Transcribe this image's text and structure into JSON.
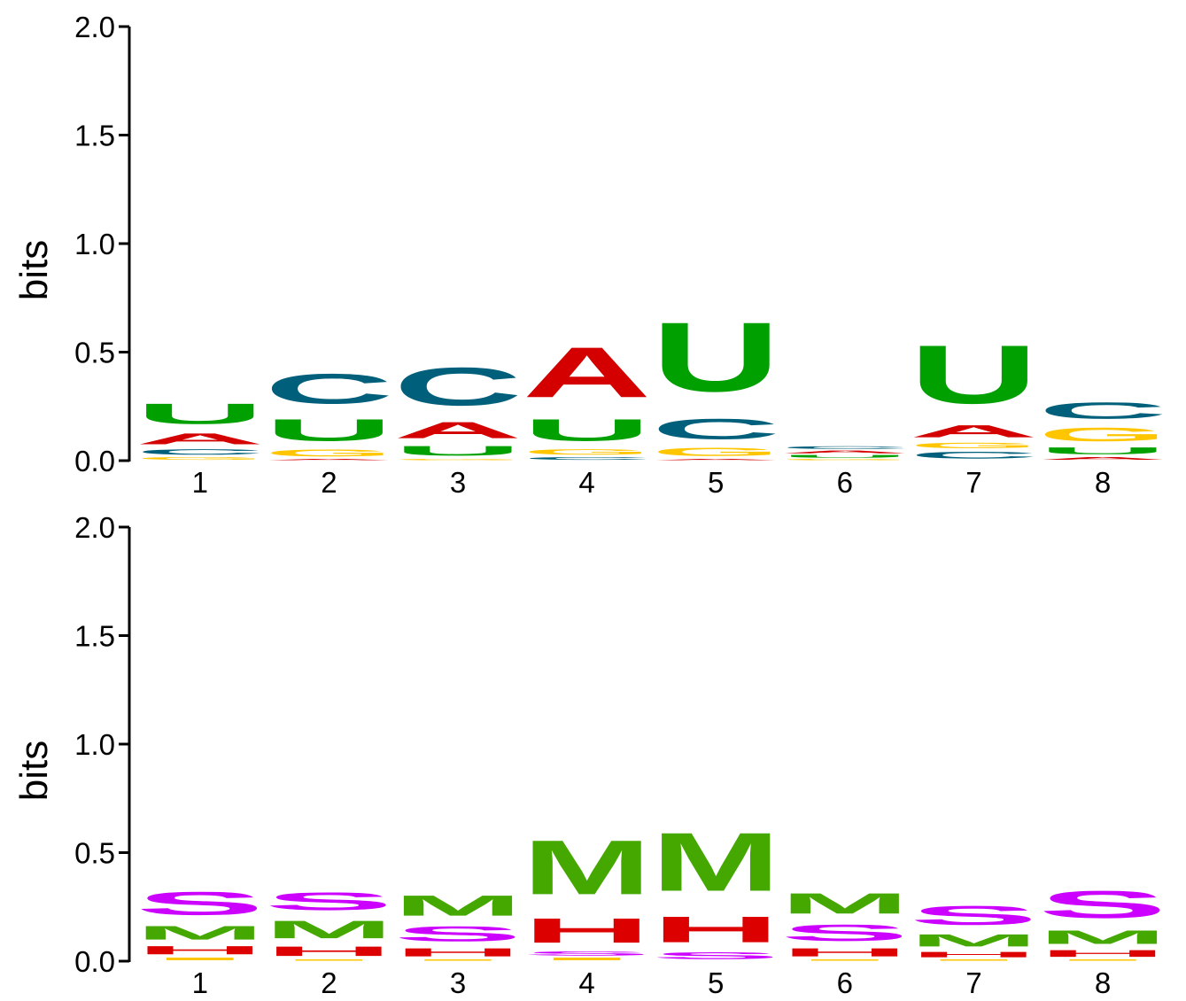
{
  "chart_data": [
    {
      "type": "sequence-logo",
      "alphabet": "RNA",
      "ylabel": "bits",
      "ylim": [
        0,
        2
      ],
      "yticks": [
        "0.0",
        "0.5",
        "1.0",
        "1.5",
        "2.0"
      ],
      "positions": [
        "1",
        "2",
        "3",
        "4",
        "5",
        "6",
        "7",
        "8"
      ],
      "colors": {
        "A": "#d40000",
        "C": "#005f7a",
        "G": "#ffc600",
        "U": "#00a000"
      },
      "columns": [
        [
          [
            "G",
            0.02
          ],
          [
            "C",
            0.04
          ],
          [
            "A",
            0.08
          ],
          [
            "U",
            0.15
          ]
        ],
        [
          [
            "A",
            0.01
          ],
          [
            "G",
            0.05
          ],
          [
            "U",
            0.16
          ],
          [
            "C",
            0.22
          ]
        ],
        [
          [
            "G",
            0.01
          ],
          [
            "U",
            0.07
          ],
          [
            "A",
            0.12
          ],
          [
            "C",
            0.28
          ]
        ],
        [
          [
            "C",
            0.02
          ],
          [
            "G",
            0.04
          ],
          [
            "U",
            0.16
          ],
          [
            "A",
            0.37
          ]
        ],
        [
          [
            "A",
            0.01
          ],
          [
            "G",
            0.06
          ],
          [
            "C",
            0.15
          ],
          [
            "U",
            0.51
          ]
        ],
        [
          [
            "G",
            0.01
          ],
          [
            "U",
            0.02
          ],
          [
            "A",
            0.02
          ],
          [
            "C",
            0.02
          ]
        ],
        [
          [
            "C",
            0.05
          ],
          [
            "G",
            0.04
          ],
          [
            "A",
            0.09
          ],
          [
            "U",
            0.43
          ]
        ],
        [
          [
            "A",
            0.02
          ],
          [
            "U",
            0.05
          ],
          [
            "G",
            0.1
          ],
          [
            "C",
            0.12
          ]
        ]
      ]
    },
    {
      "type": "sequence-logo",
      "alphabet": "structure",
      "ylabel": "bits",
      "ylim": [
        0,
        2
      ],
      "yticks": [
        "0.0",
        "0.5",
        "1.0",
        "1.5",
        "2.0"
      ],
      "positions": [
        "1",
        "2",
        "3",
        "4",
        "5",
        "6",
        "7",
        "8"
      ],
      "colors": {
        "H": "#dd0000",
        "I": "#ffc600",
        "M": "#44a800",
        "S": "#cc00ff"
      },
      "columns": [
        [
          [
            "I",
            0.02
          ],
          [
            "H",
            0.06
          ],
          [
            "M",
            0.1
          ],
          [
            "S",
            0.17
          ]
        ],
        [
          [
            "I",
            0.01
          ],
          [
            "H",
            0.07
          ],
          [
            "M",
            0.13
          ],
          [
            "S",
            0.13
          ]
        ],
        [
          [
            "I",
            0.01
          ],
          [
            "H",
            0.06
          ],
          [
            "S",
            0.11
          ],
          [
            "M",
            0.15
          ]
        ],
        [
          [
            "I",
            0.02
          ],
          [
            "S",
            0.03
          ],
          [
            "H",
            0.18
          ],
          [
            "M",
            0.4
          ]
        ],
        [
          [
            "S",
            0.05
          ],
          [
            "H",
            0.19
          ],
          [
            "M",
            0.43
          ]
        ],
        [
          [
            "I",
            0.01
          ],
          [
            "H",
            0.06
          ],
          [
            "S",
            0.12
          ],
          [
            "M",
            0.15
          ]
        ],
        [
          [
            "I",
            0.01
          ],
          [
            "H",
            0.04
          ],
          [
            "M",
            0.09
          ],
          [
            "S",
            0.14
          ]
        ],
        [
          [
            "I",
            0.01
          ],
          [
            "H",
            0.05
          ],
          [
            "M",
            0.1
          ],
          [
            "S",
            0.2
          ]
        ]
      ]
    }
  ]
}
